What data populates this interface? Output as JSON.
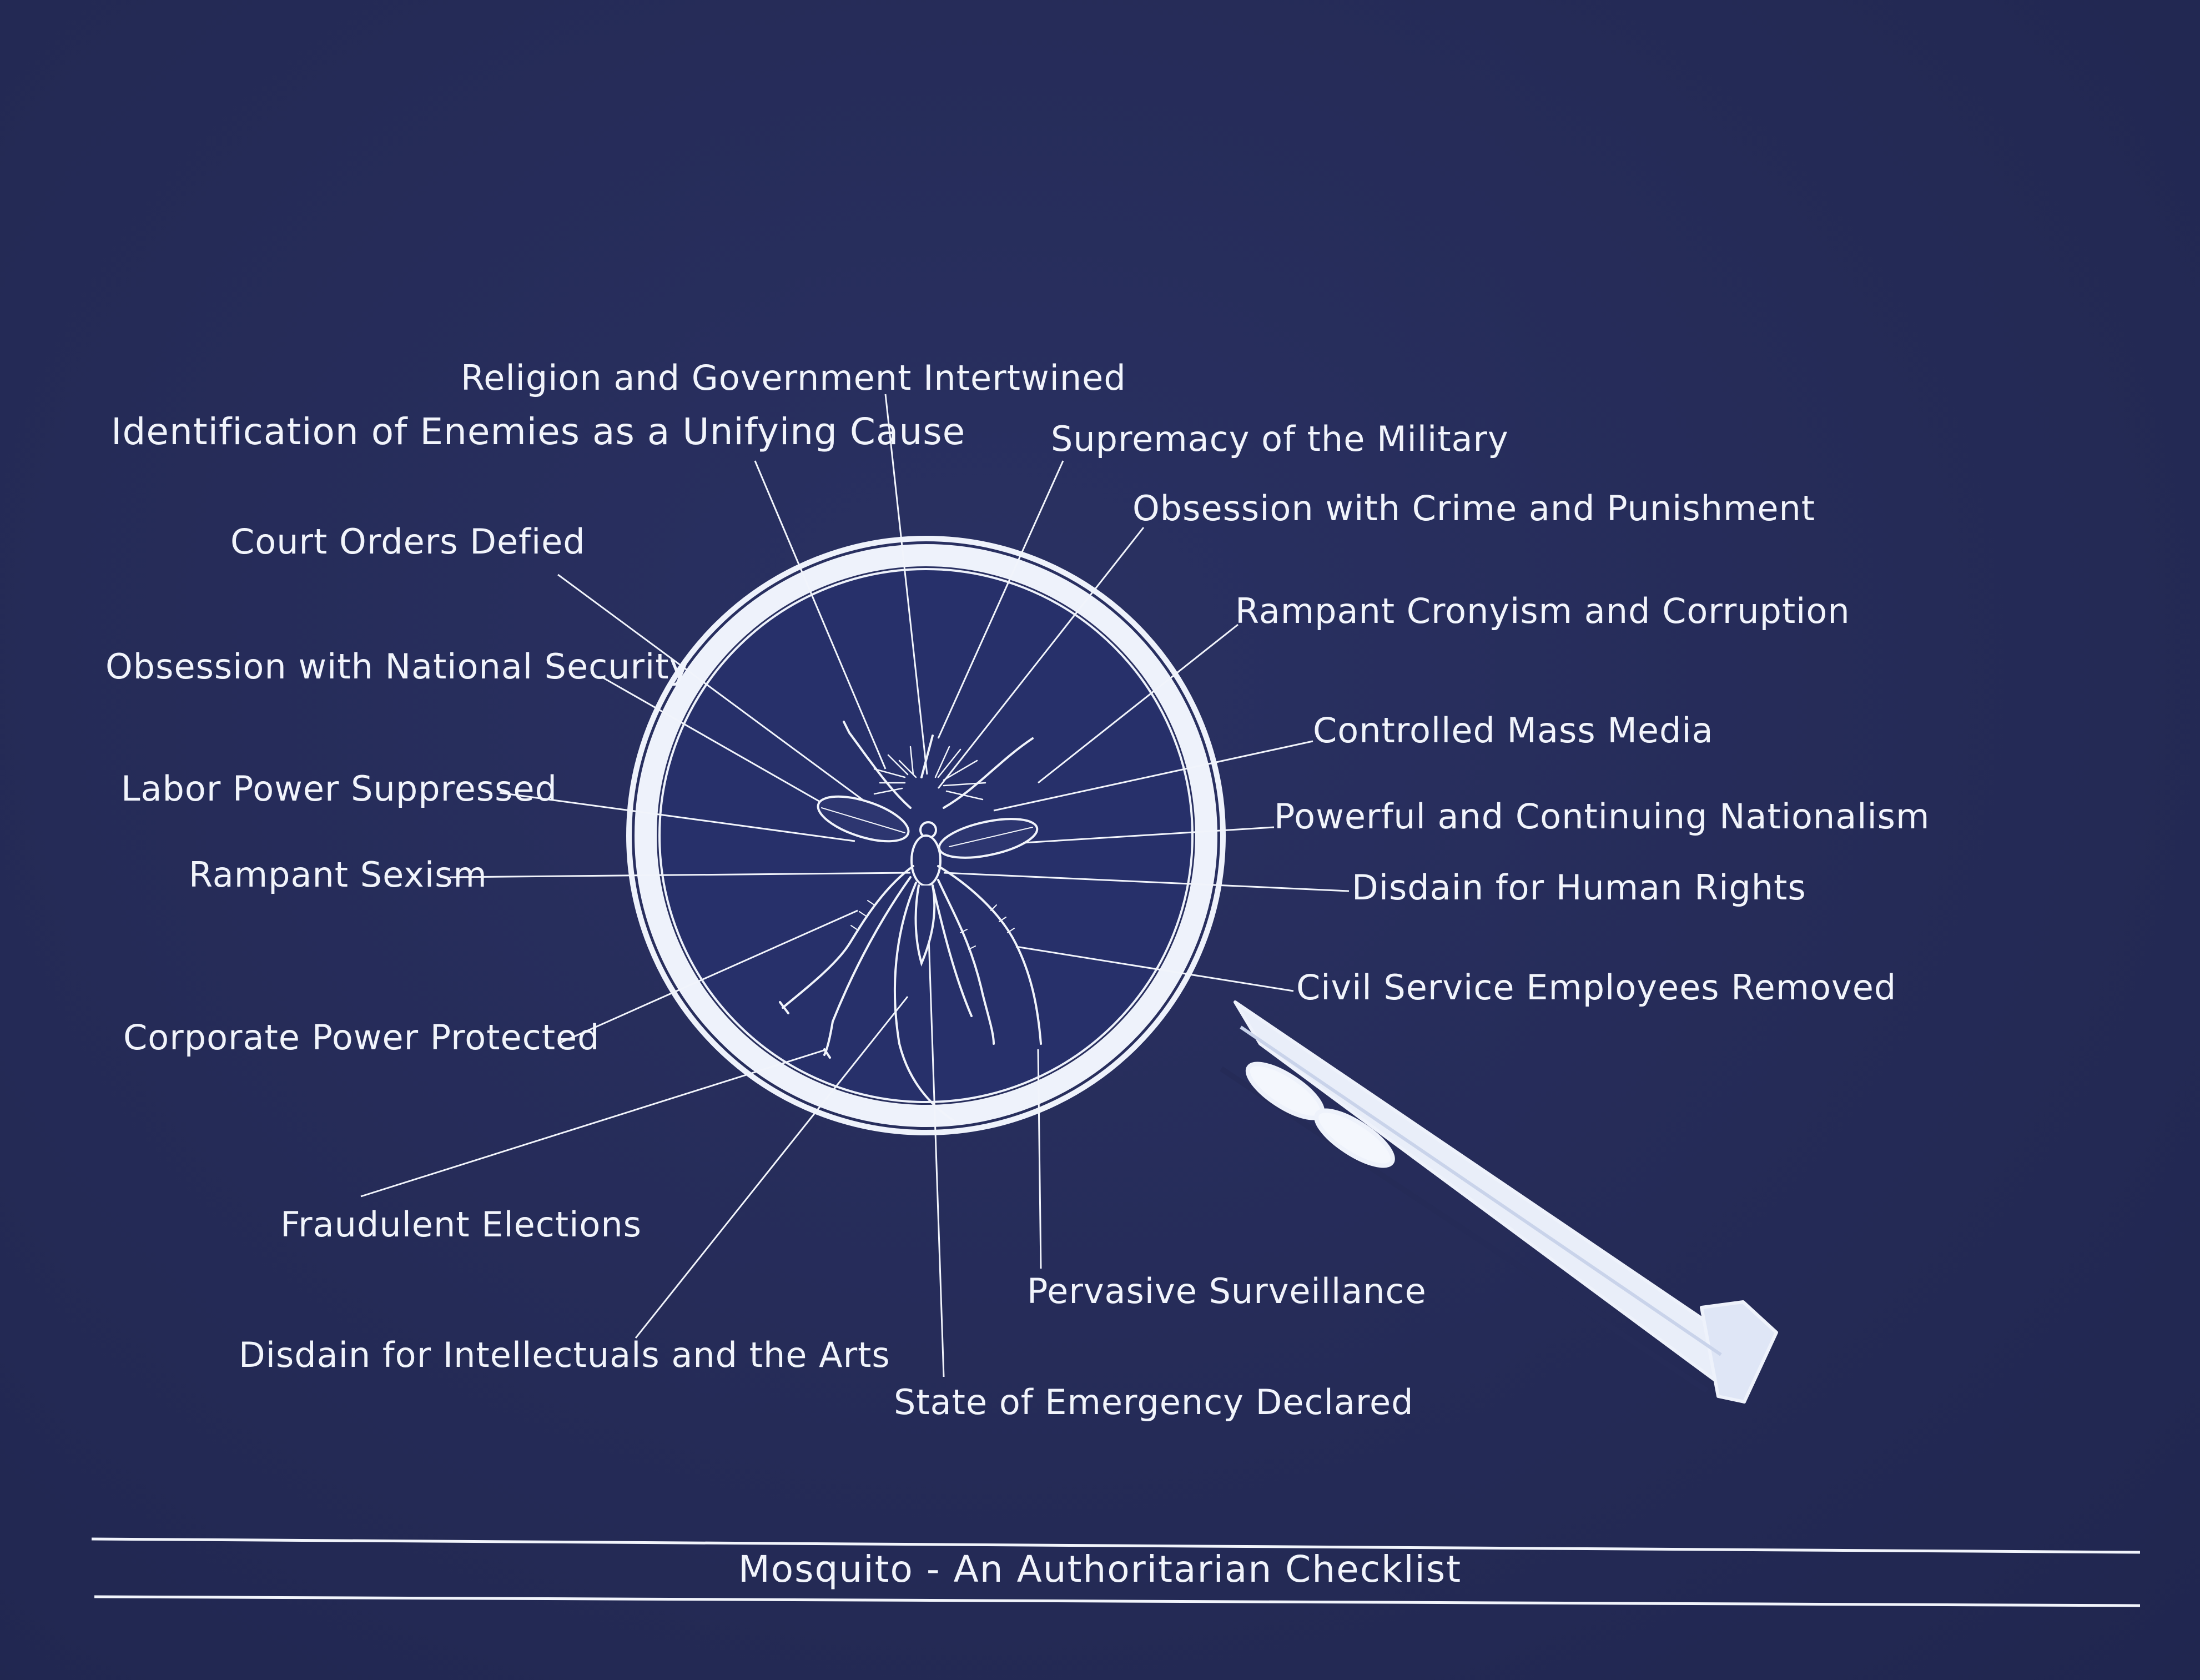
{
  "caption": "Mosquito - An Authoritarian Checklist",
  "colors": {
    "background": "#252b57",
    "ink": "#f1f4fb",
    "lens_fill": "#27306a"
  },
  "icons": {
    "illustration": "magnifying-glass-icon",
    "specimen": "mosquito-icon"
  },
  "labels": {
    "religion_government": "Religion and Government Intertwined",
    "identification_enemies": "Identification of Enemies as a Unifying Cause",
    "supremacy_military": "Supremacy of the Military",
    "crime_punishment": "Obsession with Crime and Punishment",
    "court_orders": "Court Orders Defied",
    "cronyism_corruption": "Rampant Cronyism and Corruption",
    "national_security": "Obsession with National Security",
    "mass_media": "Controlled Mass Media",
    "labor_power": "Labor Power Suppressed",
    "nationalism": "Powerful and Continuing Nationalism",
    "sexism": "Rampant Sexism",
    "human_rights": "Disdain for Human Rights",
    "civil_service": "Civil Service Employees Removed",
    "corporate_power": "Corporate Power Protected",
    "fraudulent_elections": "Fraudulent Elections",
    "pervasive_surveillance": "Pervasive Surveillance",
    "intellectuals_arts": "Disdain for Intellectuals and the Arts",
    "state_emergency": "State of Emergency Declared"
  }
}
